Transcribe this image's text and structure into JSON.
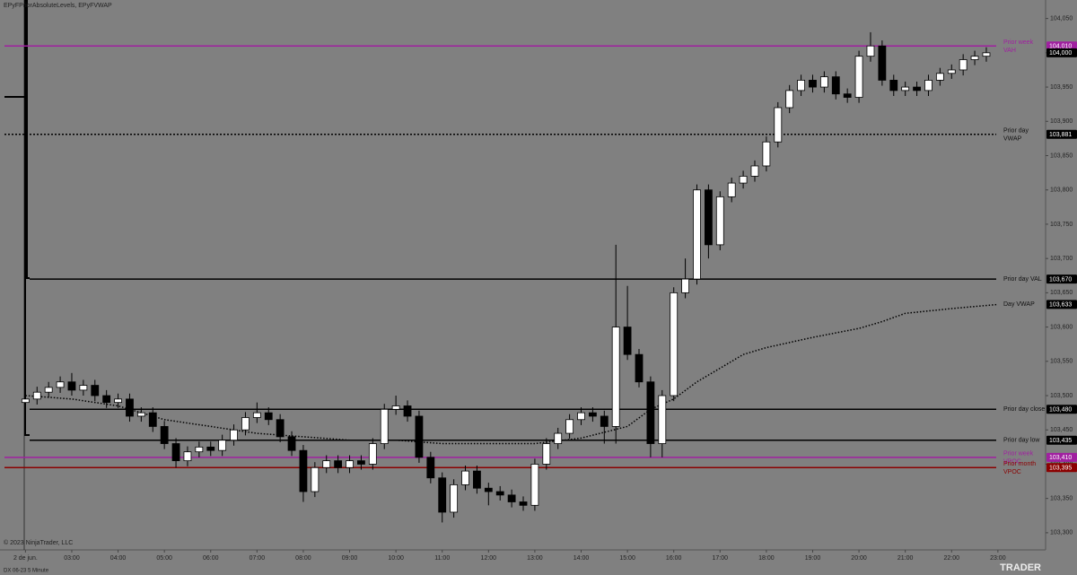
{
  "chart_data": {
    "type": "candlestick",
    "title": "EPyFPriorAbsoluteLevels, EPyFVWAP",
    "copyright": "© 2023 NinjaTrader, LLC",
    "instrument": "DX 06-23 5 Minute",
    "logo": "TRADER",
    "xlim": [
      1.45,
      24.03
    ],
    "xticks": [
      {
        "value": 2,
        "label": "2 de jun."
      },
      {
        "value": 3,
        "label": "03:00"
      },
      {
        "value": 4,
        "label": "04:00"
      },
      {
        "value": 5,
        "label": "05:00"
      },
      {
        "value": 6,
        "label": "06:00"
      },
      {
        "value": 7,
        "label": "07:00"
      },
      {
        "value": 8,
        "label": "08:00"
      },
      {
        "value": 9,
        "label": "09:00"
      },
      {
        "value": 10,
        "label": "10:00"
      },
      {
        "value": 11,
        "label": "11:00"
      },
      {
        "value": 12,
        "label": "12:00"
      },
      {
        "value": 13,
        "label": "13:00"
      },
      {
        "value": 14,
        "label": "14:00"
      },
      {
        "value": 15,
        "label": "15:00"
      },
      {
        "value": 16,
        "label": "16:00"
      },
      {
        "value": 17,
        "label": "17:00"
      },
      {
        "value": 18,
        "label": "18:00"
      },
      {
        "value": 19,
        "label": "19:00"
      },
      {
        "value": 20,
        "label": "20:00"
      },
      {
        "value": 21,
        "label": "21:00"
      },
      {
        "value": 22,
        "label": "22:00"
      },
      {
        "value": 23,
        "label": "23:00"
      }
    ],
    "ylim": [
      103.275,
      104.077
    ],
    "yticks": [
      {
        "value": 104.05,
        "label": "104,050"
      },
      {
        "value": 104.0,
        "label": "104,000"
      },
      {
        "value": 103.95,
        "label": "103,950"
      },
      {
        "value": 103.9,
        "label": "103,900"
      },
      {
        "value": 103.85,
        "label": "103,850"
      },
      {
        "value": 103.8,
        "label": "103,800"
      },
      {
        "value": 103.75,
        "label": "103,750"
      },
      {
        "value": 103.7,
        "label": "103,700"
      },
      {
        "value": 103.65,
        "label": "103,650"
      },
      {
        "value": 103.6,
        "label": "103,600"
      },
      {
        "value": 103.55,
        "label": "103,550"
      },
      {
        "value": 103.5,
        "label": "103,500"
      },
      {
        "value": 103.45,
        "label": "103,450"
      },
      {
        "value": 103.4,
        "label": "103,400"
      },
      {
        "value": 103.35,
        "label": "103,350"
      },
      {
        "value": 103.3,
        "label": "103,300"
      }
    ],
    "up_color": "#ffffff",
    "down_color": "#000000",
    "candles": {
      "x": [
        2.0,
        2.25,
        2.5,
        2.75,
        3.0,
        3.25,
        3.5,
        3.75,
        4.0,
        4.25,
        4.5,
        4.75,
        5.0,
        5.25,
        5.5,
        5.75,
        6.0,
        6.25,
        6.5,
        6.75,
        7.0,
        7.25,
        7.5,
        7.75,
        8.0,
        8.25,
        8.5,
        8.75,
        9.0,
        9.25,
        9.5,
        9.75,
        10.0,
        10.25,
        10.5,
        10.75,
        11.0,
        11.25,
        11.5,
        11.75,
        12.0,
        12.25,
        12.5,
        12.75,
        13.0,
        13.25,
        13.5,
        13.75,
        14.0,
        14.25,
        14.5,
        14.75,
        15.0,
        15.25,
        15.5,
        15.75,
        16.0,
        16.25,
        16.5,
        16.75,
        17.0,
        17.25,
        17.5,
        17.75,
        18.0,
        18.25,
        18.5,
        18.75,
        19.0,
        19.25,
        19.5,
        19.75,
        20.0,
        20.25,
        20.5,
        20.75,
        21.0,
        21.25,
        21.5,
        21.75,
        22.0,
        22.25,
        22.5,
        22.75
      ],
      "open": [
        103.49,
        103.495,
        103.505,
        103.512,
        103.52,
        103.508,
        103.515,
        103.5,
        103.49,
        103.495,
        103.47,
        103.475,
        103.455,
        103.43,
        103.405,
        103.418,
        103.425,
        103.42,
        103.435,
        103.45,
        103.468,
        103.475,
        103.465,
        103.44,
        103.42,
        103.36,
        103.395,
        103.405,
        103.395,
        103.405,
        103.4,
        103.43,
        103.48,
        103.485,
        103.47,
        103.41,
        103.38,
        103.33,
        103.37,
        103.39,
        103.365,
        103.36,
        103.355,
        103.345,
        103.34,
        103.4,
        103.43,
        103.445,
        103.465,
        103.475,
        103.47,
        103.455,
        103.6,
        103.56,
        103.52,
        103.43,
        103.5,
        103.65,
        103.67,
        103.8,
        103.72,
        103.79,
        103.81,
        103.82,
        103.835,
        103.87,
        103.92,
        103.945,
        103.96,
        103.95,
        103.965,
        103.94,
        103.935,
        103.995,
        104.01,
        103.96,
        103.945,
        103.95,
        103.945,
        103.96,
        103.97,
        103.975,
        103.99,
        103.995
      ],
      "high": [
        103.503,
        103.513,
        103.52,
        103.528,
        103.533,
        103.523,
        103.523,
        103.508,
        103.503,
        103.503,
        103.483,
        103.483,
        103.463,
        103.438,
        103.426,
        103.433,
        103.433,
        103.443,
        103.458,
        103.476,
        103.49,
        103.483,
        103.473,
        103.448,
        103.428,
        103.403,
        103.413,
        103.413,
        103.413,
        103.413,
        103.438,
        103.488,
        103.5,
        103.493,
        103.478,
        103.418,
        103.388,
        103.378,
        103.398,
        103.398,
        103.373,
        103.368,
        103.363,
        103.353,
        103.408,
        103.438,
        103.453,
        103.473,
        103.483,
        103.483,
        103.478,
        103.72,
        103.66,
        103.568,
        103.528,
        103.508,
        103.658,
        103.7,
        103.808,
        103.808,
        103.798,
        103.818,
        103.828,
        103.843,
        103.878,
        103.928,
        103.953,
        103.968,
        103.968,
        103.973,
        103.973,
        103.948,
        104.003,
        104.03,
        104.018,
        103.968,
        103.958,
        103.958,
        103.968,
        103.978,
        103.983,
        103.998,
        104.003,
        104.008
      ],
      "low": [
        103.482,
        103.487,
        103.497,
        103.504,
        103.5,
        103.5,
        103.492,
        103.482,
        103.482,
        103.462,
        103.462,
        103.447,
        103.422,
        103.395,
        103.397,
        103.41,
        103.412,
        103.412,
        103.427,
        103.442,
        103.46,
        103.457,
        103.432,
        103.412,
        103.345,
        103.352,
        103.387,
        103.387,
        103.387,
        103.392,
        103.392,
        103.422,
        103.472,
        103.462,
        103.402,
        103.372,
        103.315,
        103.322,
        103.362,
        103.357,
        103.34,
        103.347,
        103.337,
        103.332,
        103.332,
        103.392,
        103.422,
        103.437,
        103.457,
        103.462,
        103.43,
        103.43,
        103.552,
        103.512,
        103.41,
        103.41,
        103.492,
        103.642,
        103.662,
        103.7,
        103.712,
        103.782,
        103.802,
        103.812,
        103.827,
        103.862,
        103.912,
        103.937,
        103.942,
        103.942,
        103.932,
        103.927,
        103.927,
        103.987,
        103.952,
        103.937,
        103.937,
        103.937,
        103.937,
        103.952,
        103.962,
        103.967,
        103.982,
        103.987
      ],
      "close": [
        103.495,
        103.505,
        103.512,
        103.52,
        103.508,
        103.515,
        103.5,
        103.49,
        103.495,
        103.47,
        103.475,
        103.455,
        103.43,
        103.405,
        103.418,
        103.425,
        103.42,
        103.435,
        103.45,
        103.468,
        103.475,
        103.465,
        103.44,
        103.42,
        103.36,
        103.395,
        103.405,
        103.395,
        103.405,
        103.4,
        103.43,
        103.48,
        103.485,
        103.47,
        103.41,
        103.38,
        103.33,
        103.37,
        103.39,
        103.365,
        103.36,
        103.355,
        103.345,
        103.34,
        103.4,
        103.43,
        103.445,
        103.465,
        103.475,
        103.47,
        103.455,
        103.6,
        103.56,
        103.52,
        103.43,
        103.5,
        103.65,
        103.67,
        103.8,
        103.72,
        103.79,
        103.81,
        103.82,
        103.835,
        103.87,
        103.92,
        103.945,
        103.96,
        103.95,
        103.965,
        103.94,
        103.935,
        103.995,
        104.01,
        103.96,
        103.945,
        103.95,
        103.945,
        103.96,
        103.97,
        103.975,
        103.99,
        103.995,
        104.0
      ]
    },
    "day_vwap": {
      "name": "Day VWAP",
      "color": "#000000",
      "x": [
        2,
        3,
        4,
        5,
        6,
        7,
        8,
        9,
        10,
        11,
        12,
        13,
        14,
        15,
        15.5,
        16,
        16.5,
        17,
        17.5,
        18,
        19,
        20,
        20.5,
        21,
        22,
        23
      ],
      "values": [
        103.5,
        103.495,
        103.485,
        103.465,
        103.455,
        103.445,
        103.44,
        103.435,
        103.435,
        103.43,
        103.43,
        103.43,
        103.438,
        103.455,
        103.48,
        103.495,
        103.52,
        103.54,
        103.56,
        103.57,
        103.585,
        103.598,
        103.608,
        103.62,
        103.627,
        103.633
      ],
      "last_value": 103.633,
      "last_label": "103,633"
    },
    "levels": [
      {
        "name": [
          "Prior week",
          "VAH"
        ],
        "value": 104.01,
        "label": "104,010",
        "color": "#a020a0",
        "style": "solid"
      },
      {
        "name": [
          "Prior day",
          "VWAP"
        ],
        "value": 103.881,
        "label": "103,881",
        "color": "#000000",
        "style": "dotted"
      },
      {
        "name": [
          "Prior day VAL"
        ],
        "value": 103.67,
        "label": "103,670",
        "color": "#000000",
        "style": "solid"
      },
      {
        "name": [
          "Prior day close"
        ],
        "value": 103.48,
        "label": "103,480",
        "color": "#000000",
        "style": "solid"
      },
      {
        "name": [
          "Prior day low"
        ],
        "value": 103.435,
        "label": "103,435",
        "color": "#000000",
        "style": "solid"
      },
      {
        "name": [
          "Prior week",
          "VPOC"
        ],
        "value": 103.41,
        "label": "103,410",
        "color": "#a020a0",
        "style": "solid"
      },
      {
        "name": [
          "Prior month",
          "VPOC"
        ],
        "value": 103.395,
        "label": "103,395",
        "color": "#8b0000",
        "style": "solid"
      }
    ],
    "last_price": {
      "value": 104.0,
      "label": "104,000"
    }
  }
}
